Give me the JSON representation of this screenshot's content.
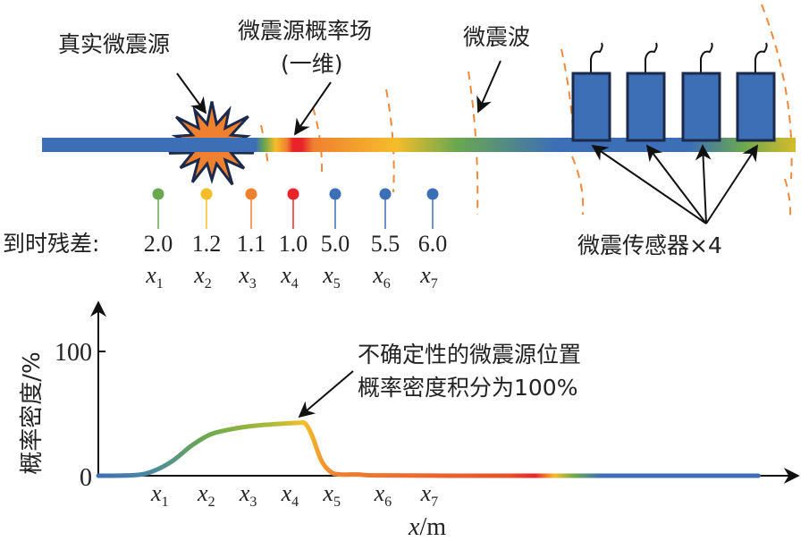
{
  "labels": {
    "true_source": "真实微震源",
    "prob_field_line1": "微震源概率场",
    "prob_field_line2": "(一维)",
    "wave": "微震波",
    "sensors": "微震传感器×4",
    "residual_title": "到时残差:",
    "annotation_line1": "不确定性的微震源位置",
    "annotation_line2": "概率密度积分为100%"
  },
  "markers": [
    {
      "residual": "2.0",
      "var": "x",
      "sub": "1",
      "color": "#6aa84f"
    },
    {
      "residual": "1.2",
      "var": "x",
      "sub": "2",
      "color": "#f6bd2a"
    },
    {
      "residual": "1.1",
      "var": "x",
      "sub": "3",
      "color": "#ef8030"
    },
    {
      "residual": "1.0",
      "var": "x",
      "sub": "4",
      "color": "#e8242a"
    },
    {
      "residual": "5.0",
      "var": "x",
      "sub": "5",
      "color": "#3d6fb6"
    },
    {
      "residual": "5.5",
      "var": "x",
      "sub": "6",
      "color": "#3d6fb6"
    },
    {
      "residual": "6.0",
      "var": "x",
      "sub": "7",
      "color": "#3d6fb6"
    }
  ],
  "colors": {
    "blue": "#3d6fb6",
    "green": "#6aa84f",
    "yellow": "#f6bd2a",
    "orange": "#ef8030",
    "red": "#e8242a",
    "wave": "#ee8a3c",
    "sensor_border": "#1b2a4a"
  },
  "chart_data": {
    "type": "line",
    "ylabel": "概率密度/%",
    "xlabel_var": "x",
    "xlabel_unit": "/m",
    "yticks": [
      "0",
      "100"
    ],
    "ylim": [
      0,
      140
    ],
    "xlim": [
      0,
      15
    ],
    "x_ticks": [
      1.4,
      2.4,
      3.3,
      4.2,
      5.1,
      6.2,
      7.2
    ],
    "x": [
      0,
      0.8,
      1.2,
      1.6,
      2.0,
      2.4,
      2.8,
      3.2,
      3.6,
      4.0,
      4.3,
      4.45,
      4.6,
      4.8,
      5.0,
      5.2,
      5.6,
      6.0,
      8.0,
      14.2
    ],
    "y": [
      0,
      0.5,
      4,
      12,
      24,
      33,
      37,
      39.5,
      41,
      42,
      42.5,
      42,
      32,
      12,
      3,
      1,
      1,
      0.3,
      0,
      0
    ]
  }
}
